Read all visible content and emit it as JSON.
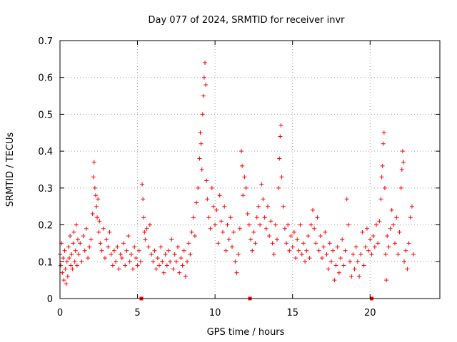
{
  "chart_data": {
    "type": "scatter",
    "title": "Day 077 of 2024, SRMTID for receiver invr",
    "xlabel": "GPS time / hours",
    "ylabel": "SRMTID / TECUs",
    "xlim": [
      0,
      24.5
    ],
    "ylim": [
      0,
      0.7
    ],
    "x_ticks": [
      0,
      5,
      10,
      15,
      20
    ],
    "x_tick_labels": [
      "0",
      "5",
      "10",
      "15",
      "20"
    ],
    "y_ticks": [
      0,
      0.1,
      0.2,
      0.3,
      0.4,
      0.5,
      0.6,
      0.7
    ],
    "y_tick_labels": [
      "0",
      "0.1",
      "0.2",
      "0.3",
      "0.4",
      "0.5",
      "0.6",
      "0.7"
    ],
    "grid": true,
    "marker": "plus",
    "series_color": "#ff0000",
    "gap_markers_x": [
      5.25,
      12.25,
      20.1
    ],
    "series": [
      {
        "name": "SRMTID",
        "points": [
          [
            0.0,
            0.12
          ],
          [
            0.05,
            0.09
          ],
          [
            0.1,
            0.15
          ],
          [
            0.15,
            0.07
          ],
          [
            0.2,
            0.11
          ],
          [
            0.25,
            0.05
          ],
          [
            0.3,
            0.13
          ],
          [
            0.35,
            0.08
          ],
          [
            0.4,
            0.04
          ],
          [
            0.45,
            0.1
          ],
          [
            0.5,
            0.06
          ],
          [
            0.55,
            0.14
          ],
          [
            0.6,
            0.11
          ],
          [
            0.65,
            0.17
          ],
          [
            0.7,
            0.09
          ],
          [
            0.75,
            0.12
          ],
          [
            0.8,
            0.08
          ],
          [
            0.85,
            0.15
          ],
          [
            0.9,
            0.18
          ],
          [
            0.95,
            0.1
          ],
          [
            1.0,
            0.13
          ],
          [
            1.05,
            0.2
          ],
          [
            1.1,
            0.09
          ],
          [
            1.15,
            0.16
          ],
          [
            1.2,
            0.12
          ],
          [
            1.3,
            0.15
          ],
          [
            1.4,
            0.1
          ],
          [
            1.5,
            0.17
          ],
          [
            1.6,
            0.13
          ],
          [
            1.7,
            0.19
          ],
          [
            1.8,
            0.11
          ],
          [
            1.9,
            0.14
          ],
          [
            2.0,
            0.16
          ],
          [
            2.1,
            0.23
          ],
          [
            2.15,
            0.33
          ],
          [
            2.2,
            0.37
          ],
          [
            2.25,
            0.3
          ],
          [
            2.3,
            0.28
          ],
          [
            2.35,
            0.25
          ],
          [
            2.4,
            0.22
          ],
          [
            2.45,
            0.27
          ],
          [
            2.5,
            0.18
          ],
          [
            2.55,
            0.21
          ],
          [
            2.6,
            0.15
          ],
          [
            2.7,
            0.13
          ],
          [
            2.8,
            0.19
          ],
          [
            2.9,
            0.11
          ],
          [
            3.0,
            0.16
          ],
          [
            3.1,
            0.14
          ],
          [
            3.2,
            0.18
          ],
          [
            3.3,
            0.12
          ],
          [
            3.4,
            0.09
          ],
          [
            3.5,
            0.13
          ],
          [
            3.6,
            0.1
          ],
          [
            3.7,
            0.14
          ],
          [
            3.8,
            0.08
          ],
          [
            3.9,
            0.12
          ],
          [
            4.0,
            0.11
          ],
          [
            4.1,
            0.15
          ],
          [
            4.2,
            0.09
          ],
          [
            4.3,
            0.13
          ],
          [
            4.4,
            0.17
          ],
          [
            4.5,
            0.1
          ],
          [
            4.6,
            0.12
          ],
          [
            4.7,
            0.08
          ],
          [
            4.8,
            0.14
          ],
          [
            4.9,
            0.11
          ],
          [
            5.0,
            0.09
          ],
          [
            5.1,
            0.13
          ],
          [
            5.2,
            0.1
          ],
          [
            5.3,
            0.31
          ],
          [
            5.35,
            0.27
          ],
          [
            5.4,
            0.22
          ],
          [
            5.45,
            0.18
          ],
          [
            5.5,
            0.16
          ],
          [
            5.6,
            0.19
          ],
          [
            5.7,
            0.14
          ],
          [
            5.8,
            0.2
          ],
          [
            5.9,
            0.12
          ],
          [
            6.0,
            0.1
          ],
          [
            6.1,
            0.13
          ],
          [
            6.2,
            0.08
          ],
          [
            6.3,
            0.11
          ],
          [
            6.4,
            0.09
          ],
          [
            6.5,
            0.14
          ],
          [
            6.6,
            0.1
          ],
          [
            6.7,
            0.07
          ],
          [
            6.8,
            0.12
          ],
          [
            6.9,
            0.09
          ],
          [
            7.0,
            0.13
          ],
          [
            7.1,
            0.1
          ],
          [
            7.2,
            0.16
          ],
          [
            7.3,
            0.08
          ],
          [
            7.4,
            0.12
          ],
          [
            7.5,
            0.1
          ],
          [
            7.6,
            0.14
          ],
          [
            7.7,
            0.07
          ],
          [
            7.8,
            0.11
          ],
          [
            7.9,
            0.09
          ],
          [
            8.0,
            0.13
          ],
          [
            8.1,
            0.06
          ],
          [
            8.2,
            0.1
          ],
          [
            8.3,
            0.15
          ],
          [
            8.4,
            0.12
          ],
          [
            8.5,
            0.18
          ],
          [
            8.6,
            0.22
          ],
          [
            8.7,
            0.17
          ],
          [
            8.8,
            0.26
          ],
          [
            8.9,
            0.3
          ],
          [
            9.0,
            0.38
          ],
          [
            9.05,
            0.45
          ],
          [
            9.1,
            0.42
          ],
          [
            9.15,
            0.35
          ],
          [
            9.2,
            0.5
          ],
          [
            9.25,
            0.55
          ],
          [
            9.3,
            0.6
          ],
          [
            9.35,
            0.64
          ],
          [
            9.4,
            0.58
          ],
          [
            9.45,
            0.32
          ],
          [
            9.5,
            0.27
          ],
          [
            9.6,
            0.22
          ],
          [
            9.7,
            0.19
          ],
          [
            9.8,
            0.3
          ],
          [
            9.9,
            0.25
          ],
          [
            10.0,
            0.2
          ],
          [
            10.1,
            0.24
          ],
          [
            10.2,
            0.15
          ],
          [
            10.3,
            0.28
          ],
          [
            10.4,
            0.21
          ],
          [
            10.5,
            0.18
          ],
          [
            10.6,
            0.25
          ],
          [
            10.7,
            0.13
          ],
          [
            10.8,
            0.2
          ],
          [
            10.9,
            0.16
          ],
          [
            11.0,
            0.22
          ],
          [
            11.1,
            0.14
          ],
          [
            11.2,
            0.18
          ],
          [
            11.3,
            0.1
          ],
          [
            11.4,
            0.07
          ],
          [
            11.5,
            0.12
          ],
          [
            11.6,
            0.19
          ],
          [
            11.7,
            0.4
          ],
          [
            11.75,
            0.36
          ],
          [
            11.8,
            0.28
          ],
          [
            11.9,
            0.33
          ],
          [
            12.0,
            0.3
          ],
          [
            12.1,
            0.23
          ],
          [
            12.2,
            0.2
          ],
          [
            12.3,
            0.16
          ],
          [
            12.4,
            0.13
          ],
          [
            12.5,
            0.18
          ],
          [
            12.6,
            0.15
          ],
          [
            12.7,
            0.22
          ],
          [
            12.8,
            0.25
          ],
          [
            12.9,
            0.2
          ],
          [
            13.0,
            0.31
          ],
          [
            13.1,
            0.27
          ],
          [
            13.2,
            0.22
          ],
          [
            13.3,
            0.19
          ],
          [
            13.4,
            0.25
          ],
          [
            13.5,
            0.17
          ],
          [
            13.6,
            0.21
          ],
          [
            13.7,
            0.15
          ],
          [
            13.8,
            0.12
          ],
          [
            13.9,
            0.2
          ],
          [
            14.0,
            0.16
          ],
          [
            14.1,
            0.3
          ],
          [
            14.15,
            0.38
          ],
          [
            14.2,
            0.44
          ],
          [
            14.25,
            0.47
          ],
          [
            14.3,
            0.33
          ],
          [
            14.4,
            0.25
          ],
          [
            14.5,
            0.19
          ],
          [
            14.6,
            0.15
          ],
          [
            14.7,
            0.2
          ],
          [
            14.8,
            0.13
          ],
          [
            14.9,
            0.17
          ],
          [
            15.0,
            0.14
          ],
          [
            15.1,
            0.18
          ],
          [
            15.2,
            0.11
          ],
          [
            15.3,
            0.16
          ],
          [
            15.4,
            0.13
          ],
          [
            15.5,
            0.2
          ],
          [
            15.6,
            0.12
          ],
          [
            15.7,
            0.15
          ],
          [
            15.8,
            0.1
          ],
          [
            15.9,
            0.13
          ],
          [
            16.0,
            0.17
          ],
          [
            16.1,
            0.11
          ],
          [
            16.2,
            0.2
          ],
          [
            16.3,
            0.24
          ],
          [
            16.4,
            0.19
          ],
          [
            16.5,
            0.15
          ],
          [
            16.6,
            0.22
          ],
          [
            16.7,
            0.13
          ],
          [
            16.8,
            0.17
          ],
          [
            16.9,
            0.11
          ],
          [
            17.0,
            0.14
          ],
          [
            17.1,
            0.18
          ],
          [
            17.2,
            0.12
          ],
          [
            17.3,
            0.08
          ],
          [
            17.4,
            0.15
          ],
          [
            17.5,
            0.1
          ],
          [
            17.6,
            0.13
          ],
          [
            17.7,
            0.05
          ],
          [
            17.8,
            0.09
          ],
          [
            17.9,
            0.14
          ],
          [
            18.0,
            0.07
          ],
          [
            18.1,
            0.11
          ],
          [
            18.2,
            0.16
          ],
          [
            18.3,
            0.09
          ],
          [
            18.4,
            0.13
          ],
          [
            18.5,
            0.27
          ],
          [
            18.6,
            0.2
          ],
          [
            18.7,
            0.1
          ],
          [
            18.8,
            0.06
          ],
          [
            18.9,
            0.12
          ],
          [
            19.0,
            0.08
          ],
          [
            19.1,
            0.14
          ],
          [
            19.2,
            0.1
          ],
          [
            19.3,
            0.06
          ],
          [
            19.4,
            0.12
          ],
          [
            19.5,
            0.18
          ],
          [
            19.6,
            0.09
          ],
          [
            19.7,
            0.14
          ],
          [
            19.8,
            0.19
          ],
          [
            19.9,
            0.13
          ],
          [
            20.0,
            0.16
          ],
          [
            20.1,
            0.12
          ],
          [
            20.2,
            0.17
          ],
          [
            20.3,
            0.14
          ],
          [
            20.4,
            0.2
          ],
          [
            20.5,
            0.15
          ],
          [
            20.6,
            0.21
          ],
          [
            20.7,
            0.27
          ],
          [
            20.75,
            0.33
          ],
          [
            20.8,
            0.36
          ],
          [
            20.85,
            0.42
          ],
          [
            20.9,
            0.45
          ],
          [
            20.95,
            0.3
          ],
          [
            21.0,
            0.12
          ],
          [
            21.05,
            0.05
          ],
          [
            21.1,
            0.17
          ],
          [
            21.2,
            0.14
          ],
          [
            21.3,
            0.19
          ],
          [
            21.4,
            0.24
          ],
          [
            21.5,
            0.2
          ],
          [
            21.6,
            0.15
          ],
          [
            21.7,
            0.22
          ],
          [
            21.8,
            0.12
          ],
          [
            21.9,
            0.18
          ],
          [
            22.0,
            0.3
          ],
          [
            22.05,
            0.35
          ],
          [
            22.1,
            0.4
          ],
          [
            22.15,
            0.37
          ],
          [
            22.2,
            0.1
          ],
          [
            22.3,
            0.13
          ],
          [
            22.4,
            0.08
          ],
          [
            22.5,
            0.15
          ],
          [
            22.6,
            0.22
          ],
          [
            22.7,
            0.25
          ],
          [
            22.8,
            0.12
          ]
        ]
      }
    ]
  }
}
